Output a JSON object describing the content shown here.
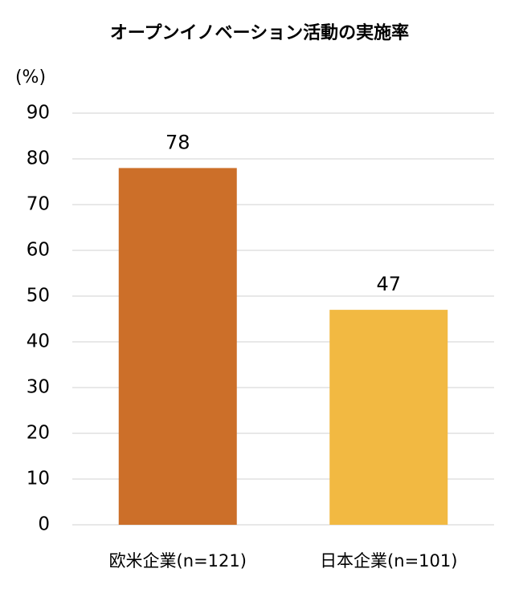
{
  "chart_data": {
    "type": "bar",
    "title": "オープンイノベーション活動の実施率",
    "y_label": "(%)",
    "categories": [
      "欧米企業(n=121)",
      "日本企業(n=101)"
    ],
    "values": [
      78,
      47
    ],
    "colors": [
      "#cc6f29",
      "#f2b942"
    ],
    "ylim": [
      0,
      90
    ],
    "yticks": [
      0,
      10,
      20,
      30,
      40,
      50,
      60,
      70,
      80,
      90
    ],
    "grid": true
  }
}
